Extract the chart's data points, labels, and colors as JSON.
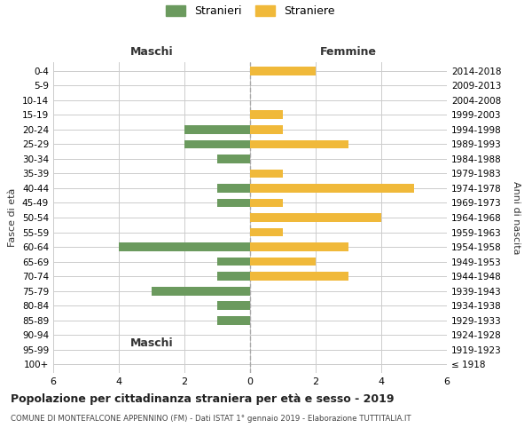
{
  "age_groups": [
    "100+",
    "95-99",
    "90-94",
    "85-89",
    "80-84",
    "75-79",
    "70-74",
    "65-69",
    "60-64",
    "55-59",
    "50-54",
    "45-49",
    "40-44",
    "35-39",
    "30-34",
    "25-29",
    "20-24",
    "15-19",
    "10-14",
    "5-9",
    "0-4"
  ],
  "birth_years": [
    "≤ 1918",
    "1919-1923",
    "1924-1928",
    "1929-1933",
    "1934-1938",
    "1939-1943",
    "1944-1948",
    "1949-1953",
    "1954-1958",
    "1959-1963",
    "1964-1968",
    "1969-1973",
    "1974-1978",
    "1979-1983",
    "1984-1988",
    "1989-1993",
    "1994-1998",
    "1999-2003",
    "2004-2008",
    "2009-2013",
    "2014-2018"
  ],
  "maschi": [
    0,
    0,
    0,
    1,
    1,
    3,
    1,
    1,
    4,
    0,
    0,
    1,
    1,
    0,
    1,
    2,
    2,
    0,
    0,
    0,
    0
  ],
  "femmine": [
    0,
    0,
    0,
    0,
    0,
    0,
    3,
    2,
    3,
    1,
    4,
    1,
    5,
    1,
    0,
    3,
    1,
    1,
    0,
    0,
    2
  ],
  "maschi_color": "#6b9a5e",
  "femmine_color": "#f0b93a",
  "grid_color": "#cccccc",
  "center_line_color": "#aaaaaa",
  "bg_color": "#ffffff",
  "xlim": 6,
  "title": "Popolazione per cittadinanza straniera per età e sesso - 2019",
  "subtitle": "COMUNE DI MONTEFALCONE APPENNINO (FM) - Dati ISTAT 1° gennaio 2019 - Elaborazione TUTTITALIA.IT",
  "ylabel_left": "Fasce di età",
  "ylabel_right": "Anni di nascita",
  "xlabel_left": "Maschi",
  "xlabel_right": "Femmine",
  "legend_maschi": "Stranieri",
  "legend_femmine": "Straniere"
}
